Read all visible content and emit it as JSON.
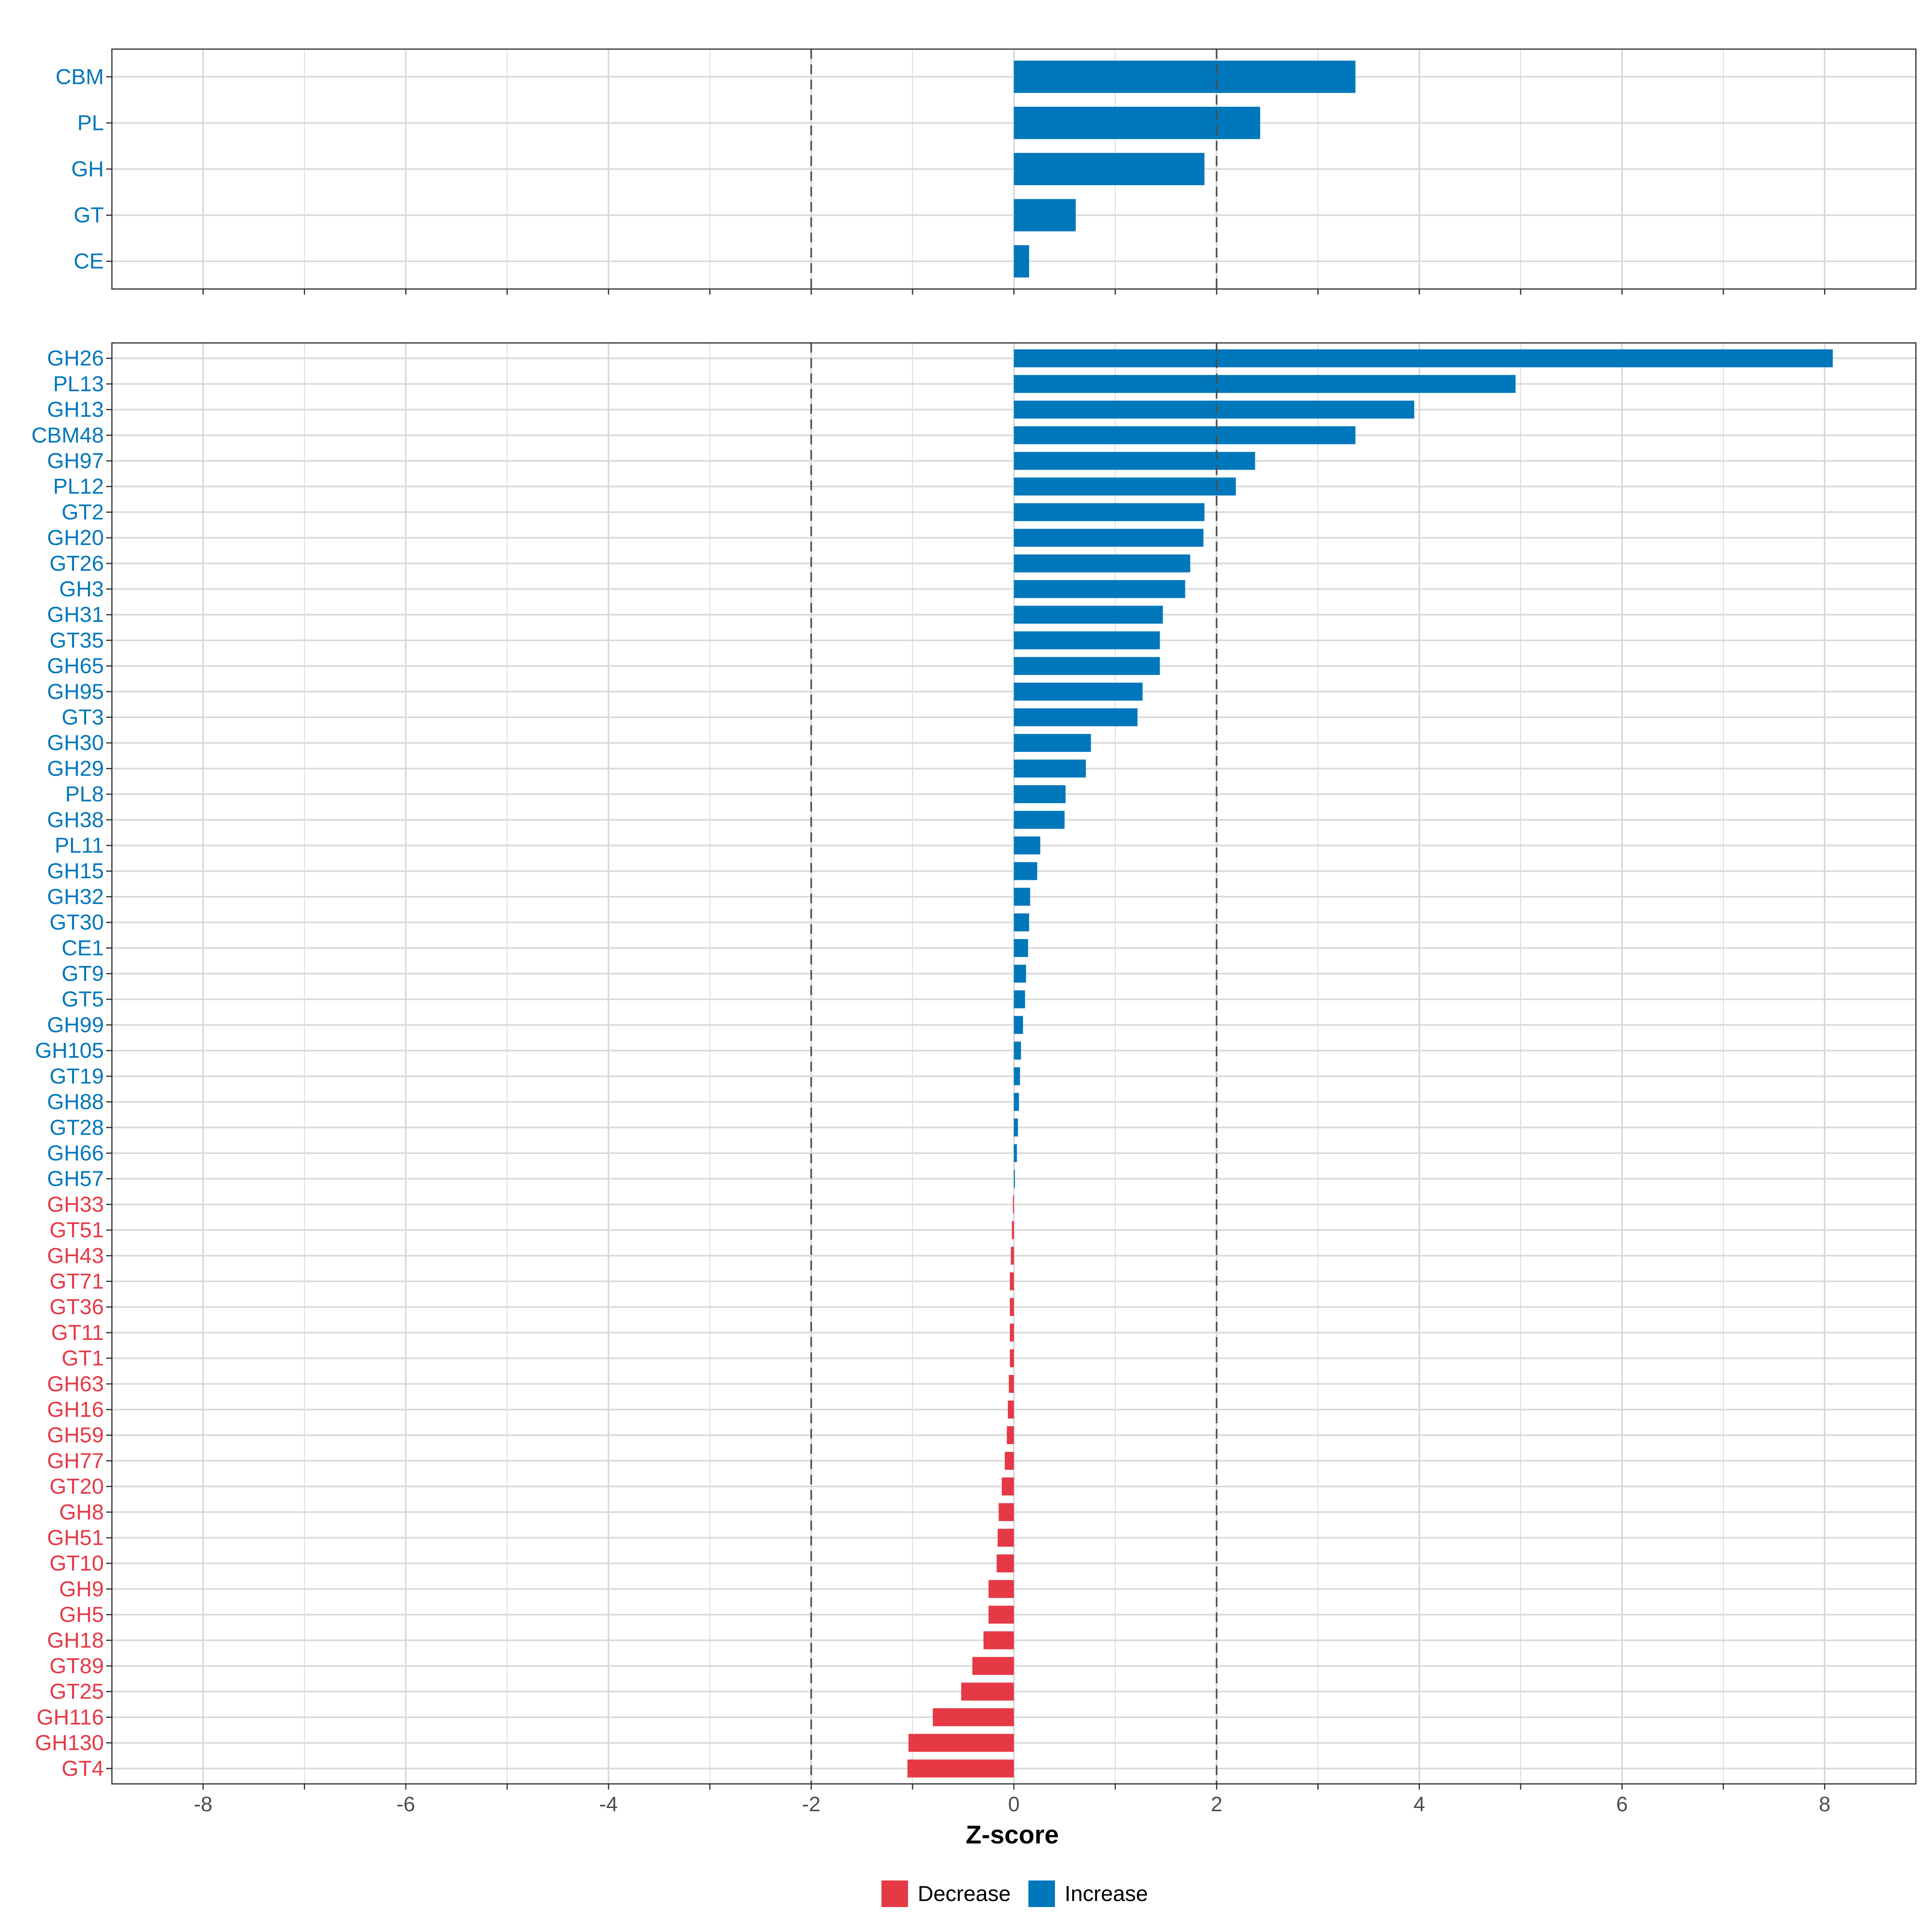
{
  "chart_data": [
    {
      "type": "bar",
      "orientation": "horizontal",
      "panel": "class-level",
      "categories": [
        "CBM",
        "PL",
        "GH",
        "GT",
        "CE"
      ],
      "values": [
        3.37,
        2.43,
        1.88,
        0.61,
        0.15
      ],
      "xlim": [
        -8.9,
        8.9
      ],
      "reference_lines": [
        -2,
        2
      ],
      "grid": true
    },
    {
      "type": "bar",
      "orientation": "horizontal",
      "panel": "family-level",
      "categories": [
        "GH26",
        "PL13",
        "GH13",
        "CBM48",
        "GH97",
        "PL12",
        "GT2",
        "GH20",
        "GT26",
        "GH3",
        "GH31",
        "GT35",
        "GH65",
        "GH95",
        "GT3",
        "GH30",
        "GH29",
        "PL8",
        "GH38",
        "PL11",
        "GH15",
        "GH32",
        "GT30",
        "CE1",
        "GT9",
        "GT5",
        "GH99",
        "GH105",
        "GT19",
        "GH88",
        "GT28",
        "GH66",
        "GH57",
        "GH33",
        "GT51",
        "GH43",
        "GT71",
        "GT36",
        "GT11",
        "GT1",
        "GH63",
        "GH16",
        "GH59",
        "GH77",
        "GT20",
        "GH8",
        "GH51",
        "GT10",
        "GH9",
        "GH5",
        "GH18",
        "GT89",
        "GT25",
        "GH116",
        "GH130",
        "GT4"
      ],
      "values": [
        8.08,
        4.95,
        3.95,
        3.37,
        2.38,
        2.19,
        1.88,
        1.87,
        1.74,
        1.69,
        1.47,
        1.44,
        1.44,
        1.27,
        1.22,
        0.76,
        0.71,
        0.51,
        0.5,
        0.26,
        0.23,
        0.16,
        0.15,
        0.14,
        0.12,
        0.11,
        0.09,
        0.07,
        0.06,
        0.05,
        0.04,
        0.03,
        0.01,
        -0.01,
        -0.02,
        -0.03,
        -0.04,
        -0.04,
        -0.04,
        -0.04,
        -0.05,
        -0.06,
        -0.07,
        -0.09,
        -0.12,
        -0.15,
        -0.16,
        -0.17,
        -0.25,
        -0.25,
        -0.3,
        -0.41,
        -0.52,
        -0.8,
        -1.04,
        -1.05
      ],
      "xlim": [
        -8.9,
        8.9
      ],
      "x_ticks": [
        "-8",
        "-6",
        "-4",
        "-2",
        "0",
        "2",
        "4",
        "6",
        "8"
      ],
      "xlabel": "Z-score",
      "ylabel": "",
      "reference_lines": [
        -2,
        2
      ],
      "grid": true
    }
  ],
  "legend": {
    "position": "bottom",
    "entries": [
      {
        "label": "Decrease",
        "color": "#E63946"
      },
      {
        "label": "Increase",
        "color": "#0077BB"
      }
    ]
  },
  "colors": {
    "increase": "#0077BB",
    "decrease": "#E63946",
    "grid": "#d9d9d9",
    "reference_line": "#4d4d4d",
    "panel_border": "#333333"
  }
}
